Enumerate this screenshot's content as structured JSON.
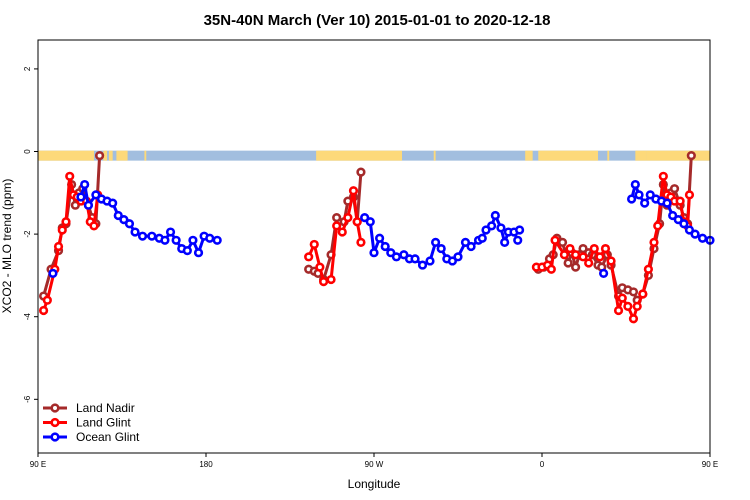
{
  "chart_data": {
    "type": "line",
    "title": "35N-40N March (Ver 10)   2015-01-01 to 2020-12-18",
    "xlabel": "Longitude",
    "ylabel": "XCO2 - MLO trend (ppm)",
    "xlim": [
      90,
      450
    ],
    "ylim": [
      -7.3,
      2.7
    ],
    "x_ticks": [
      {
        "value": 90,
        "label": "90 E"
      },
      {
        "value": 180,
        "label": "180"
      },
      {
        "value": 270,
        "label": "90 W"
      },
      {
        "value": 360,
        "label": "0"
      },
      {
        "value": 450,
        "label": "90 E"
      },
      {
        "value": 540,
        "label": "180"
      }
    ],
    "y_ticks": [
      {
        "value": 2,
        "label": "2"
      },
      {
        "value": 0,
        "label": "0"
      },
      {
        "value": -2,
        "label": "-2"
      },
      {
        "value": -4,
        "label": "-4"
      },
      {
        "value": -6,
        "label": "-6"
      }
    ],
    "land_ocean_band": {
      "y": -0.1,
      "land_color": "#fdd97a",
      "ocean_color": "#a2bedf",
      "land_segments": [
        [
          90,
          120
        ],
        [
          125,
          127
        ],
        [
          128,
          130
        ],
        [
          132,
          138
        ],
        [
          147,
          148
        ],
        [
          239,
          285
        ],
        [
          302,
          303
        ],
        [
          351,
          355
        ],
        [
          358,
          360
        ],
        [
          360,
          390
        ],
        [
          395,
          396
        ],
        [
          410,
          416
        ],
        [
          416,
          480
        ],
        [
          482,
          484
        ],
        [
          485,
          487
        ],
        [
          585,
          587
        ]
      ]
    },
    "series": [
      {
        "name": "Land Nadir",
        "color": "#a52a2a",
        "points": [
          [
            93,
            -3.5
          ],
          [
            97,
            -2.85
          ],
          [
            101,
            -2.4
          ],
          [
            103,
            -1.85
          ],
          [
            105,
            -1.75
          ],
          [
            108,
            -0.8
          ],
          [
            110,
            -1.3
          ],
          [
            112,
            -1.0
          ],
          [
            114,
            -0.9
          ],
          [
            117,
            -1.3
          ],
          [
            119,
            -1.6
          ],
          [
            121,
            -1.75
          ],
          [
            123,
            -0.1
          ],
          null,
          [
            235,
            -2.85
          ],
          [
            238,
            -2.9
          ],
          [
            240,
            -2.95
          ],
          [
            243,
            -3.1
          ],
          [
            247,
            -2.5
          ],
          [
            250,
            -1.6
          ],
          [
            254,
            -1.7
          ],
          [
            256,
            -1.2
          ],
          [
            259,
            -1.1
          ],
          [
            261,
            -1.7
          ],
          [
            263,
            -0.5
          ],
          null,
          [
            358,
            -2.85
          ],
          [
            361,
            -2.8
          ],
          [
            364,
            -2.6
          ],
          [
            366,
            -2.5
          ],
          [
            368,
            -2.1
          ],
          [
            371,
            -2.2
          ],
          [
            374,
            -2.7
          ],
          [
            376,
            -2.45
          ],
          [
            378,
            -2.8
          ],
          [
            380,
            -2.5
          ],
          [
            382,
            -2.35
          ],
          [
            385,
            -2.45
          ],
          [
            387,
            -2.5
          ],
          [
            390,
            -2.75
          ],
          [
            392,
            -2.8
          ],
          [
            395,
            -2.5
          ],
          [
            397,
            -2.75
          ],
          [
            401,
            -3.5
          ],
          [
            403,
            -3.3
          ],
          [
            406,
            -3.35
          ],
          [
            409,
            -3.4
          ],
          [
            411,
            -3.6
          ],
          [
            414,
            -3.45
          ],
          [
            417,
            -3.0
          ],
          [
            420,
            -2.35
          ],
          [
            423,
            -1.75
          ],
          [
            425,
            -0.8
          ],
          [
            427,
            -1.3
          ],
          [
            429,
            -1.0
          ],
          [
            431,
            -0.9
          ],
          [
            434,
            -1.3
          ],
          [
            436,
            -1.6
          ],
          [
            438,
            -1.75
          ],
          [
            440,
            -0.1
          ]
        ]
      },
      {
        "name": "Land Glint",
        "color": "#ff0000",
        "points": [
          [
            93,
            -3.85
          ],
          [
            95,
            -3.6
          ],
          [
            99,
            -2.85
          ],
          [
            101,
            -2.3
          ],
          [
            103,
            -1.9
          ],
          [
            105,
            -1.7
          ],
          [
            107,
            -0.6
          ],
          [
            109,
            -1.05
          ],
          [
            111,
            -1.1
          ],
          [
            113,
            -1.2
          ],
          [
            116,
            -1.2
          ],
          [
            118,
            -1.7
          ],
          [
            120,
            -1.8
          ],
          [
            122,
            -1.05
          ],
          null,
          [
            235,
            -2.55
          ],
          [
            238,
            -2.25
          ],
          [
            241,
            -2.8
          ],
          [
            243,
            -3.15
          ],
          [
            247,
            -3.1
          ],
          [
            250,
            -1.8
          ],
          [
            253,
            -1.95
          ],
          [
            256,
            -1.6
          ],
          [
            259,
            -0.95
          ],
          [
            261,
            -1.7
          ],
          [
            263,
            -2.2
          ],
          null,
          [
            357,
            -2.8
          ],
          [
            360,
            -2.8
          ],
          [
            363,
            -2.75
          ],
          [
            365,
            -2.85
          ],
          [
            367,
            -2.15
          ],
          [
            372,
            -2.5
          ],
          [
            375,
            -2.35
          ],
          [
            378,
            -2.5
          ],
          [
            382,
            -2.55
          ],
          [
            385,
            -2.7
          ],
          [
            388,
            -2.35
          ],
          [
            391,
            -2.55
          ],
          [
            394,
            -2.35
          ],
          [
            397,
            -2.65
          ],
          [
            401,
            -3.85
          ],
          [
            403,
            -3.55
          ],
          [
            406,
            -3.75
          ],
          [
            409,
            -4.05
          ],
          [
            411,
            -3.75
          ],
          [
            414,
            -3.45
          ],
          [
            417,
            -2.85
          ],
          [
            420,
            -2.2
          ],
          [
            422,
            -1.8
          ],
          [
            425,
            -0.6
          ],
          [
            427,
            -1.05
          ],
          [
            429,
            -1.1
          ],
          [
            431,
            -1.2
          ],
          [
            434,
            -1.2
          ],
          [
            436,
            -1.7
          ],
          [
            438,
            -1.8
          ],
          [
            439,
            -1.05
          ]
        ]
      },
      {
        "name": "Ocean Glint",
        "color": "#0000ff",
        "points": [
          [
            98,
            -2.95
          ],
          null,
          [
            113,
            -1.1
          ],
          [
            115,
            -0.8
          ],
          [
            117,
            -1.3
          ],
          [
            121,
            -1.05
          ],
          [
            124,
            -1.15
          ],
          [
            127,
            -1.2
          ],
          [
            130,
            -1.25
          ],
          [
            133,
            -1.55
          ],
          [
            136,
            -1.65
          ],
          [
            139,
            -1.75
          ],
          [
            142,
            -1.95
          ],
          [
            146,
            -2.05
          ],
          [
            151,
            -2.05
          ],
          [
            155,
            -2.1
          ],
          [
            158,
            -2.15
          ],
          [
            161,
            -1.95
          ],
          [
            164,
            -2.15
          ],
          [
            167,
            -2.35
          ],
          [
            170,
            -2.4
          ],
          [
            173,
            -2.15
          ],
          [
            176,
            -2.45
          ],
          [
            179,
            -2.05
          ],
          [
            182,
            -2.1
          ],
          [
            186,
            -2.15
          ],
          null,
          [
            265,
            -1.6
          ],
          [
            268,
            -1.7
          ],
          [
            270,
            -2.45
          ],
          [
            273,
            -2.1
          ],
          [
            276,
            -2.3
          ],
          [
            279,
            -2.45
          ],
          [
            282,
            -2.55
          ],
          [
            286,
            -2.5
          ],
          [
            289,
            -2.6
          ],
          [
            292,
            -2.6
          ],
          [
            296,
            -2.75
          ],
          [
            300,
            -2.65
          ],
          [
            303,
            -2.2
          ],
          [
            306,
            -2.35
          ],
          [
            309,
            -2.6
          ],
          [
            312,
            -2.65
          ],
          [
            315,
            -2.55
          ],
          [
            319,
            -2.2
          ],
          [
            322,
            -2.3
          ],
          [
            326,
            -2.15
          ],
          [
            328,
            -2.1
          ],
          [
            330,
            -1.9
          ],
          [
            333,
            -1.8
          ],
          [
            335,
            -1.55
          ],
          [
            338,
            -1.85
          ],
          [
            340,
            -2.2
          ],
          [
            342,
            -1.95
          ],
          null,
          [
            345,
            -1.95
          ],
          [
            347,
            -2.15
          ],
          null,
          [
            348,
            -1.9
          ],
          null,
          [
            393,
            -2.95
          ],
          null,
          [
            408,
            -1.15
          ],
          [
            410,
            -0.8
          ],
          [
            412,
            -1.05
          ],
          [
            415,
            -1.25
          ],
          [
            418,
            -1.05
          ],
          [
            421,
            -1.15
          ],
          [
            424,
            -1.2
          ],
          [
            427,
            -1.25
          ],
          [
            430,
            -1.55
          ],
          [
            433,
            -1.65
          ],
          [
            436,
            -1.75
          ],
          [
            439,
            -1.9
          ],
          [
            442,
            -2.0
          ],
          [
            446,
            -2.1
          ],
          [
            450,
            -2.15
          ]
        ]
      }
    ],
    "legend": {
      "placement": "bottom-left",
      "entries": [
        "Land Nadir",
        "Land Glint",
        "Ocean Glint"
      ]
    },
    "grid": false
  }
}
